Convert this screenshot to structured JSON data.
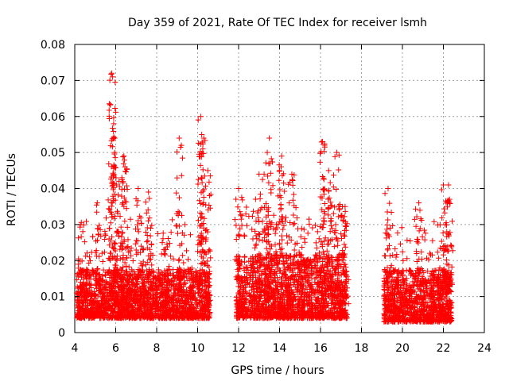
{
  "chart_data": {
    "type": "scatter",
    "title": "Day 359 of 2021, Rate Of TEC Index for receiver lsmh",
    "xlabel": "GPS time / hours",
    "ylabel": "ROTI / TECUs",
    "xlim": [
      4,
      24
    ],
    "ylim": [
      0,
      0.08
    ],
    "x_ticks": [
      "4",
      "6",
      "8",
      "10",
      "12",
      "14",
      "16",
      "18",
      "20",
      "22",
      "24"
    ],
    "y_ticks": [
      "0",
      "0.01",
      "0.02",
      "0.03",
      "0.04",
      "0.05",
      "0.06",
      "0.07",
      "0.08"
    ],
    "grid": true,
    "marker": "+",
    "color": "#ff0000",
    "series": [
      {
        "name": "ROTI",
        "segments": [
          {
            "x_start": 4.1,
            "x_end": 10.6,
            "typical_range": [
              0.004,
              0.02
            ]
          },
          {
            "x_start": 11.9,
            "x_end": 17.3,
            "typical_range": [
              0.004,
              0.025
            ]
          },
          {
            "x_start": 19.1,
            "x_end": 22.4,
            "typical_range": [
              0.003,
              0.02
            ]
          }
        ],
        "peaks": [
          {
            "x": 5.8,
            "y": 0.072
          },
          {
            "x": 5.85,
            "y": 0.071
          },
          {
            "x": 5.9,
            "y": 0.058
          },
          {
            "x": 5.95,
            "y": 0.054
          },
          {
            "x": 5.95,
            "y": 0.05
          },
          {
            "x": 6.4,
            "y": 0.049
          },
          {
            "x": 6.45,
            "y": 0.046
          },
          {
            "x": 6.3,
            "y": 0.043
          },
          {
            "x": 5.1,
            "y": 0.036
          },
          {
            "x": 7.1,
            "y": 0.04
          },
          {
            "x": 7.6,
            "y": 0.039
          },
          {
            "x": 9.1,
            "y": 0.054
          },
          {
            "x": 10.15,
            "y": 0.06
          },
          {
            "x": 10.2,
            "y": 0.055
          },
          {
            "x": 10.25,
            "y": 0.051
          },
          {
            "x": 10.5,
            "y": 0.045
          },
          {
            "x": 12.0,
            "y": 0.04
          },
          {
            "x": 13.0,
            "y": 0.044
          },
          {
            "x": 13.5,
            "y": 0.054
          },
          {
            "x": 13.4,
            "y": 0.05
          },
          {
            "x": 14.1,
            "y": 0.049
          },
          {
            "x": 14.0,
            "y": 0.045
          },
          {
            "x": 14.6,
            "y": 0.044
          },
          {
            "x": 16.1,
            "y": 0.053
          },
          {
            "x": 16.2,
            "y": 0.052
          },
          {
            "x": 16.4,
            "y": 0.045
          },
          {
            "x": 16.8,
            "y": 0.05
          },
          {
            "x": 17.2,
            "y": 0.035
          },
          {
            "x": 19.3,
            "y": 0.04
          },
          {
            "x": 20.8,
            "y": 0.036
          },
          {
            "x": 22.0,
            "y": 0.041
          },
          {
            "x": 22.25,
            "y": 0.041
          },
          {
            "x": 22.3,
            "y": 0.037
          }
        ]
      }
    ]
  }
}
